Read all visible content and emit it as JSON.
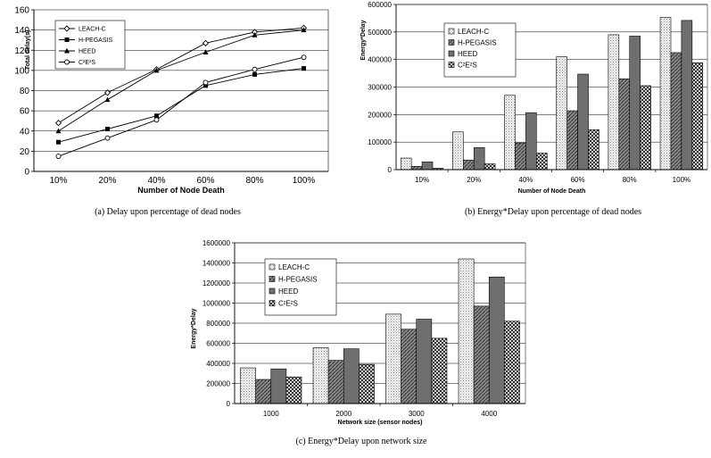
{
  "chart_data": [
    {
      "type": "line",
      "title": "",
      "xlabel": "Number of Node Death",
      "ylabel": "Total delay(s)",
      "caption": "(a) Delay upon percentage of dead nodes",
      "categories": [
        "10%",
        "20%",
        "40%",
        "60%",
        "80%",
        "100%"
      ],
      "ylim": [
        0,
        160
      ],
      "yticks": [
        "0",
        "20",
        "40",
        "60",
        "80",
        "100",
        "120",
        "140",
        "160"
      ],
      "grid": true,
      "legend_position": "top-left",
      "series": [
        {
          "name": "LEACH-C",
          "marker": "diamond",
          "values": [
            48,
            78,
            101,
            127,
            138,
            142
          ]
        },
        {
          "name": "H-PEGASIS",
          "marker": "square",
          "values": [
            29,
            42,
            55,
            85,
            96,
            102
          ]
        },
        {
          "name": "HEED",
          "marker": "triangle",
          "values": [
            40,
            71,
            100,
            118,
            135,
            140
          ]
        },
        {
          "name": "C²E²S",
          "marker": "circle",
          "values": [
            15,
            33,
            51,
            88,
            101,
            113
          ]
        }
      ]
    },
    {
      "type": "bar",
      "title": "",
      "xlabel": "Number of Node Death",
      "ylabel": "Energy*Delay",
      "caption": "(b) Energy*Delay upon percentage of dead nodes",
      "categories": [
        "10%",
        "20%",
        "40%",
        "60%",
        "80%",
        "100%"
      ],
      "ylim": [
        0,
        600000
      ],
      "yticks": [
        "0",
        "100000",
        "200000",
        "300000",
        "400000",
        "500000",
        "600000"
      ],
      "grid": true,
      "legend_position": "top-left",
      "series": [
        {
          "name": "LEACH-C",
          "values": [
            42000,
            137000,
            270000,
            410000,
            490000,
            553000
          ]
        },
        {
          "name": "H-PEGASIS",
          "values": [
            12000,
            35000,
            97000,
            214000,
            330000,
            425000
          ]
        },
        {
          "name": "HEED",
          "values": [
            28000,
            80000,
            207000,
            347000,
            485000,
            542000
          ]
        },
        {
          "name": "C²E²S",
          "values": [
            5000,
            21000,
            60000,
            145000,
            305000,
            388000
          ]
        }
      ]
    },
    {
      "type": "bar",
      "title": "",
      "xlabel": "Network size (sensor nodes)",
      "ylabel": "Energy*Delay",
      "caption": "(c) Energy*Delay upon network size",
      "categories": [
        "1000",
        "2000",
        "3000",
        "4000"
      ],
      "ylim": [
        0,
        1600000
      ],
      "yticks": [
        "0",
        "200000",
        "400000",
        "600000",
        "800000",
        "1000000",
        "1200000",
        "1400000",
        "1600000"
      ],
      "grid": true,
      "legend_position": "top-left",
      "series": [
        {
          "name": "LEACH-C",
          "values": [
            355000,
            555000,
            890000,
            1440000
          ]
        },
        {
          "name": "H-PEGASIS",
          "values": [
            240000,
            430000,
            740000,
            970000
          ]
        },
        {
          "name": "HEED",
          "values": [
            345000,
            545000,
            840000,
            1260000
          ]
        },
        {
          "name": "C²E²S",
          "values": [
            265000,
            390000,
            650000,
            820000
          ]
        }
      ]
    }
  ]
}
